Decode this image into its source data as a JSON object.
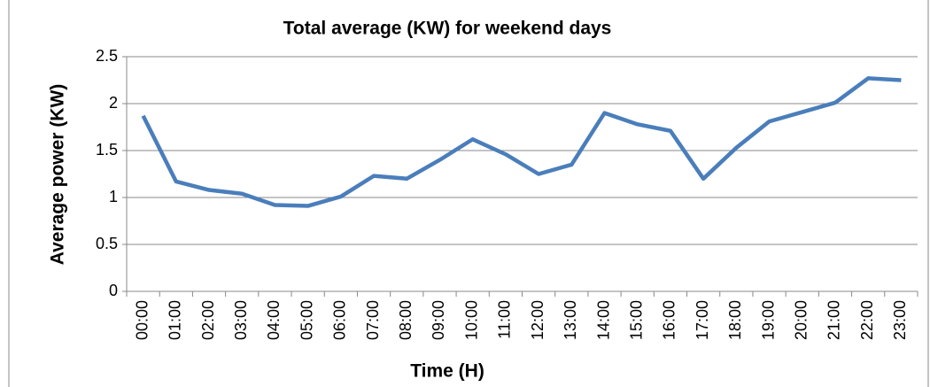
{
  "chart_data": {
    "type": "line",
    "title": "Total average (KW) for weekend days",
    "x_label": "Time (H)",
    "y_label": "Average power (KW)",
    "categories": [
      "00:00",
      "01:00",
      "02:00",
      "03:00",
      "04:00",
      "05:00",
      "06:00",
      "07:00",
      "08:00",
      "09:00",
      "10:00",
      "11:00",
      "12:00",
      "13:00",
      "14:00",
      "15:00",
      "16:00",
      "17:00",
      "18:00",
      "19:00",
      "20:00",
      "21:00",
      "22:00",
      "23:00"
    ],
    "series": [
      {
        "name": "Total average",
        "color": "#4a7ebb",
        "values": [
          1.87,
          1.17,
          1.08,
          1.04,
          0.92,
          0.91,
          1.01,
          1.23,
          1.2,
          1.4,
          1.62,
          1.46,
          1.25,
          1.35,
          1.9,
          1.78,
          1.71,
          1.2,
          1.53,
          1.81,
          1.91,
          2.01,
          2.27,
          2.25
        ]
      }
    ],
    "ylim": [
      0,
      2.5
    ],
    "yticks": [
      0,
      0.5,
      1,
      1.5,
      2,
      2.5
    ],
    "grid": true
  }
}
